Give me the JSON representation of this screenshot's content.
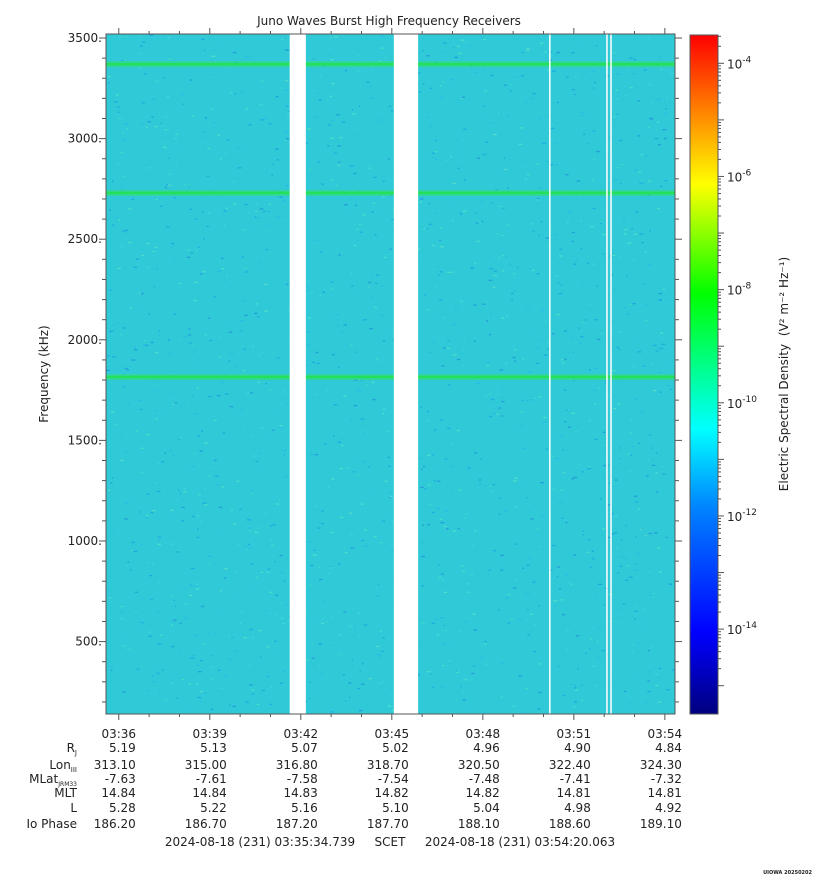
{
  "chart_data": {
    "type": "heatmap",
    "title": "Juno Waves Burst High Frequency Receivers",
    "ylabel": "Frequency (kHz)",
    "ylim": [
      140,
      3520
    ],
    "yticks": [
      500,
      1000,
      1500,
      2000,
      2500,
      3000,
      3500
    ],
    "ytick_labels": [
      "500.",
      "1000.",
      "1500.",
      "2000.",
      "2500.",
      "3000.",
      "3500."
    ],
    "x_time_start": "03:35:34.739",
    "x_time_end": "03:54:20.063",
    "x_tick_times": [
      "03:36",
      "03:39",
      "03:42",
      "03:45",
      "03:48",
      "03:51",
      "03:54"
    ],
    "data_gaps": [
      {
        "start": "03:41:38",
        "end": "03:42:10"
      },
      {
        "start": "03:45:04",
        "end": "03:45:52"
      },
      {
        "start": "03:50:11",
        "end": "03:50:14"
      },
      {
        "start": "03:52:04",
        "end": "03:52:07"
      },
      {
        "start": "03:52:12",
        "end": "03:52:15"
      }
    ],
    "emission_lines_khz": [
      3370,
      2730,
      1815
    ],
    "background_level": "1e-11",
    "colorbar": {
      "label": "Electric Spectral Density",
      "units": "(V² m⁻² Hz⁻¹)",
      "log_min": -15.5,
      "log_max": -3.5,
      "tick_exponents": [
        -4,
        -6,
        -8,
        -10,
        -12,
        -14
      ],
      "colormap": [
        "#00007f",
        "#0000ff",
        "#0080ff",
        "#00ffff",
        "#00ff00",
        "#ffff00",
        "#ff8000",
        "#ff0000"
      ]
    },
    "ephemeris": {
      "row_labels": [
        "R",
        "Lon",
        "MLat",
        "MLT",
        "L",
        "Io Phase"
      ],
      "row_subscripts": [
        "J",
        "III",
        "JRM33",
        "",
        "",
        ""
      ],
      "rows": [
        [
          "5.19",
          "5.13",
          "5.07",
          "5.02",
          "4.96",
          "4.90",
          "4.84"
        ],
        [
          "313.10",
          "315.00",
          "316.80",
          "318.70",
          "320.50",
          "322.40",
          "324.30"
        ],
        [
          "-7.63",
          "-7.61",
          "-7.58",
          "-7.54",
          "-7.48",
          "-7.41",
          "-7.32"
        ],
        [
          "14.84",
          "14.84",
          "14.83",
          "14.82",
          "14.82",
          "14.81",
          "14.81"
        ],
        [
          "5.28",
          "5.22",
          "5.16",
          "5.10",
          "5.04",
          "4.98",
          "4.92"
        ],
        [
          "186.20",
          "186.70",
          "187.20",
          "187.70",
          "188.10",
          "188.60",
          "189.10"
        ]
      ]
    },
    "footer": {
      "start": "2024-08-18 (231) 03:35:34.739",
      "scet": "SCET",
      "end": "2024-08-18 (231) 03:54:20.063"
    },
    "stamp": "UIOWA 20250202"
  }
}
